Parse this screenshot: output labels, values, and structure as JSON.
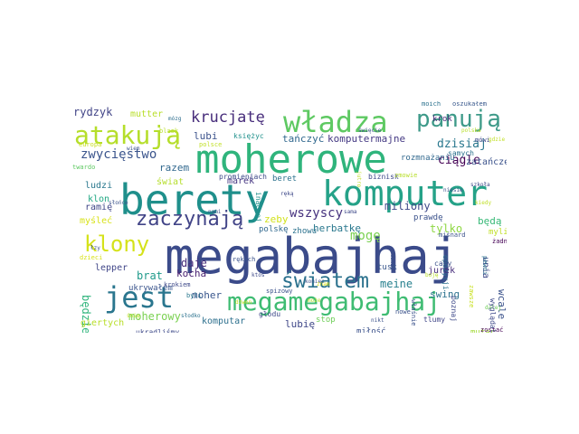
{
  "words": [
    {
      "text": "megabajhaj",
      "color": "#3b4b8a"
    },
    {
      "text": "berety",
      "color": "#1f8f8b"
    },
    {
      "text": "moherowe",
      "color": "#2fb47c"
    },
    {
      "text": "komputer",
      "color": "#25a288"
    },
    {
      "text": "władza",
      "color": "#5ec962"
    },
    {
      "text": "megamegabajhaj",
      "color": "#3fbc73"
    },
    {
      "text": "jest",
      "color": "#2a768e"
    },
    {
      "text": "atakują",
      "color": "#b5de2b"
    },
    {
      "text": "panują",
      "color": "#3e9a89"
    },
    {
      "text": "klony",
      "color": "#d5e21a"
    },
    {
      "text": "zaczynają",
      "color": "#414487"
    },
    {
      "text": "światem",
      "color": "#2c728e"
    },
    {
      "text": "krucjatę",
      "color": "#472d7b"
    },
    {
      "text": "zwycięstwo",
      "color": "#3a548c"
    },
    {
      "text": "wszyscy",
      "color": "#46327e"
    },
    {
      "text": "mogę",
      "color": "#7ad151"
    },
    {
      "text": "rydzyk",
      "color": "#414487"
    },
    {
      "text": "mutter",
      "color": "#b8de29"
    },
    {
      "text": "mózg",
      "color": "#2e6e8e"
    },
    {
      "text": "krok",
      "color": "#482878"
    },
    {
      "text": "moich",
      "color": "#2c728e"
    },
    {
      "text": "oszukałem",
      "color": "#38588c"
    },
    {
      "text": "dzisiaj",
      "color": "#2a788e"
    },
    {
      "text": "ciągle",
      "color": "#440154"
    },
    {
      "text": "tańczyć",
      "color": "#31688e"
    },
    {
      "text": "komputermajne",
      "color": "#443983"
    },
    {
      "text": "lubi",
      "color": "#3b528b"
    },
    {
      "text": "księżyc",
      "color": "#21918c"
    },
    {
      "text": "razem",
      "color": "#31688e"
    },
    {
      "text": "świat",
      "color": "#b5de2b"
    },
    {
      "text": "ludzi",
      "color": "#2a788e"
    },
    {
      "text": "klon",
      "color": "#22a884"
    },
    {
      "text": "ramię",
      "color": "#404688"
    },
    {
      "text": "myśleć",
      "color": "#d8e219"
    },
    {
      "text": "marek",
      "color": "#453581"
    },
    {
      "text": "beret",
      "color": "#2c728e"
    },
    {
      "text": "zatańczę",
      "color": "#3b528b"
    },
    {
      "text": "miliony",
      "color": "#3e4989"
    },
    {
      "text": "herbatkę",
      "color": "#2a788e"
    },
    {
      "text": "tylko",
      "color": "#8fd744"
    },
    {
      "text": "będą",
      "color": "#38b977"
    },
    {
      "text": "zeby",
      "color": "#d2e21b"
    },
    {
      "text": "polskę",
      "color": "#31688e"
    },
    {
      "text": "daje",
      "color": "#472c7a"
    },
    {
      "text": "brat",
      "color": "#1f9a8a"
    },
    {
      "text": "kocha",
      "color": "#481f70"
    },
    {
      "text": "moher",
      "color": "#39568c"
    },
    {
      "text": "moherowy",
      "color": "#7ad151"
    },
    {
      "text": "komputar",
      "color": "#2d708e"
    },
    {
      "text": "lubię",
      "color": "#3f4788"
    },
    {
      "text": "miłość",
      "color": "#3b518b"
    },
    {
      "text": "meine",
      "color": "#27808e"
    },
    {
      "text": "swing",
      "color": "#2c728e"
    },
    {
      "text": "wcale",
      "color": "#3b528b"
    },
    {
      "text": "jurek",
      "color": "#472d7b"
    },
    {
      "text": "będzie",
      "color": "#2fb47c"
    },
    {
      "text": "lepper",
      "color": "#404688"
    },
    {
      "text": "giertych",
      "color": "#b8de29"
    },
    {
      "text": "ukradliśmy",
      "color": "#3e4a89"
    },
    {
      "text": "zhowu",
      "color": "#2c728e"
    },
    {
      "text": "unia",
      "color": "#3e4989"
    },
    {
      "text": "myli",
      "color": "#c0df25"
    },
    {
      "text": "mutar",
      "color": "#a2da37"
    },
    {
      "text": "zostać",
      "color": "#440154"
    },
    {
      "text": "rozmnażaniu",
      "color": "#31688e"
    },
    {
      "text": "biznisk",
      "color": "#3e4989"
    },
    {
      "text": "tusk",
      "color": "#39568c"
    },
    {
      "text": "prawdę",
      "color": "#3b528b"
    },
    {
      "text": "stop",
      "color": "#6ece58"
    },
    {
      "text": "samych",
      "color": "#2c728e"
    },
    {
      "text": "ukrywałem",
      "color": "#3a548c"
    },
    {
      "text": "byli",
      "color": "#2a788e"
    },
    {
      "text": "krokiem",
      "color": "#3e4989"
    },
    {
      "text": "rękach",
      "color": "#3b528b"
    },
    {
      "text": "dalej",
      "color": "#6ece58"
    },
    {
      "text": "zawsze",
      "color": "#c8e020"
    },
    {
      "text": "właśnie",
      "color": "#3b528b"
    },
    {
      "text": "poznaj",
      "color": "#3e4989"
    },
    {
      "text": "opozycji",
      "color": "#2c728e"
    },
    {
      "text": "tlumy",
      "color": "#404688"
    },
    {
      "text": "pewni",
      "color": "#2c728e"
    },
    {
      "text": "wyglądali",
      "color": "#3e4989"
    },
    {
      "text": "żadnej",
      "color": "#440154"
    },
    {
      "text": "cały",
      "color": "#3b528b"
    },
    {
      "text": "dzieci",
      "color": "#d8e219"
    },
    {
      "text": "twardo",
      "color": "#5ec962"
    },
    {
      "text": "europa",
      "color": "#c8e020"
    },
    {
      "text": "polsce",
      "color": "#c0df25"
    },
    {
      "text": "promieniach",
      "color": "#3e4989"
    },
    {
      "text": "miśnard",
      "color": "#3b528b"
    },
    {
      "text": "słowie",
      "color": "#3b528b"
    },
    {
      "text": "inaczej",
      "color": "#21918c"
    },
    {
      "text": "głodu",
      "color": "#3e4989"
    },
    {
      "text": "spizowy",
      "color": "#3b528b"
    },
    {
      "text": "polska",
      "color": "#b8de29"
    },
    {
      "text": "koniec",
      "color": "#3b528b"
    },
    {
      "text": "jutro",
      "color": "#c0df25"
    },
    {
      "text": "zmowie",
      "color": "#b8de29"
    },
    {
      "text": "niesie",
      "color": "#3b528b"
    },
    {
      "text": "ktoś",
      "color": "#3e4989"
    },
    {
      "text": "nowe",
      "color": "#3b528b"
    },
    {
      "text": "mówi",
      "color": "#3e4989"
    },
    {
      "text": "śnię",
      "color": "#c0df25"
    },
    {
      "text": "słodko",
      "color": "#2c728e"
    },
    {
      "text": "dzwon",
      "color": "#c8e020"
    },
    {
      "text": "może",
      "color": "#b5de2b"
    },
    {
      "text": "święcie",
      "color": "#3b528b"
    },
    {
      "text": "kiedy",
      "color": "#c0df25"
    },
    {
      "text": "słońce",
      "color": "#3b528b"
    },
    {
      "text": "blask",
      "color": "#b8de29"
    },
    {
      "text": "wiem",
      "color": "#3b528b"
    },
    {
      "text": "sama",
      "color": "#3e4989"
    },
    {
      "text": "nikt",
      "color": "#3b528b"
    },
    {
      "text": "znam",
      "color": "#d8e219"
    },
    {
      "text": "nami",
      "color": "#3b528b"
    },
    {
      "text": "ręką",
      "color": "#3e4989"
    },
    {
      "text": "boję",
      "color": "#b8de29"
    },
    {
      "text": "łzy",
      "color": "#3b528b"
    },
    {
      "text": "szkoła",
      "color": "#3e4989"
    },
    {
      "text": "gdzie",
      "color": "#c0df25"
    }
  ]
}
